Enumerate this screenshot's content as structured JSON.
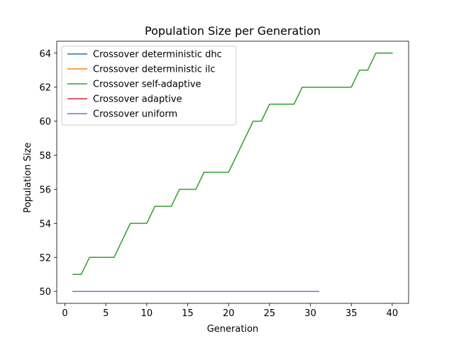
{
  "chart_data": {
    "type": "line",
    "title": "Population Size per Generation",
    "xlabel": "Generation",
    "ylabel": "Population Size",
    "xlim": [
      -1,
      42
    ],
    "ylim": [
      49.3,
      64.7
    ],
    "xticks": [
      0,
      5,
      10,
      15,
      20,
      25,
      30,
      35,
      40
    ],
    "yticks": [
      50,
      52,
      54,
      56,
      58,
      60,
      62,
      64
    ],
    "grid": false,
    "legend_position": "top-left",
    "series": [
      {
        "name": "Crossover deterministic dhc",
        "color": "#1f77b4",
        "x": [
          1,
          31
        ],
        "y": [
          50,
          50
        ]
      },
      {
        "name": "Crossover deterministic ilc",
        "color": "#ff7f0e",
        "x": [
          1,
          31
        ],
        "y": [
          50,
          50
        ]
      },
      {
        "name": "Crossover self-adaptive",
        "color": "#2ca02c",
        "x": [
          1,
          2,
          3,
          4,
          5,
          6,
          7,
          8,
          9,
          10,
          11,
          12,
          13,
          14,
          15,
          16,
          17,
          18,
          19,
          20,
          21,
          22,
          23,
          24,
          25,
          26,
          27,
          28,
          29,
          30,
          31,
          32,
          33,
          34,
          35,
          36,
          37,
          38,
          39,
          40
        ],
        "y": [
          51,
          51,
          52,
          52,
          52,
          52,
          53,
          54,
          54,
          54,
          55,
          55,
          55,
          56,
          56,
          56,
          57,
          57,
          57,
          57,
          58,
          59,
          60,
          60,
          61,
          61,
          61,
          61,
          62,
          62,
          62,
          62,
          62,
          62,
          62,
          63,
          63,
          64,
          64,
          64
        ]
      },
      {
        "name": "Crossover adaptive",
        "color": "#d62728",
        "x": [
          1,
          31
        ],
        "y": [
          50,
          50
        ]
      },
      {
        "name": "Crossover uniform",
        "color": "#9467bd",
        "x": [
          1,
          31
        ],
        "y": [
          50,
          50
        ]
      }
    ]
  }
}
